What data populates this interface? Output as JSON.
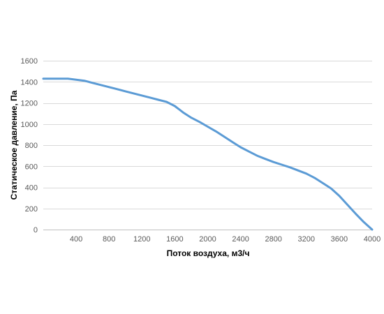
{
  "chart_data": {
    "type": "line",
    "title": "",
    "xlabel": "Поток воздуха, м3/ч",
    "ylabel": "Статическое давление, Па",
    "xlim": [
      0,
      4000
    ],
    "ylim": [
      0,
      1600
    ],
    "x_ticks": [
      400,
      800,
      1200,
      1600,
      2000,
      2400,
      2800,
      3200,
      3600,
      4000
    ],
    "y_ticks": [
      0,
      200,
      400,
      600,
      800,
      1000,
      1200,
      1400,
      1600
    ],
    "grid": "horizontal",
    "legend": "none",
    "series": [
      {
        "color": "#5b9bd5",
        "x": [
          0,
          100,
          200,
          300,
          400,
          500,
          600,
          700,
          800,
          900,
          1000,
          1100,
          1200,
          1300,
          1400,
          1500,
          1600,
          1700,
          1800,
          1900,
          2000,
          2100,
          2200,
          2300,
          2400,
          2500,
          2600,
          2700,
          2800,
          2900,
          3000,
          3100,
          3200,
          3300,
          3400,
          3500,
          3600,
          3700,
          3800,
          3900,
          4000
        ],
        "y": [
          1430,
          1430,
          1430,
          1430,
          1420,
          1410,
          1390,
          1370,
          1350,
          1330,
          1310,
          1290,
          1270,
          1250,
          1230,
          1210,
          1170,
          1110,
          1060,
          1020,
          975,
          930,
          880,
          830,
          780,
          740,
          700,
          670,
          640,
          615,
          590,
          560,
          530,
          490,
          440,
          390,
          320,
          235,
          150,
          70,
          0
        ]
      }
    ]
  }
}
